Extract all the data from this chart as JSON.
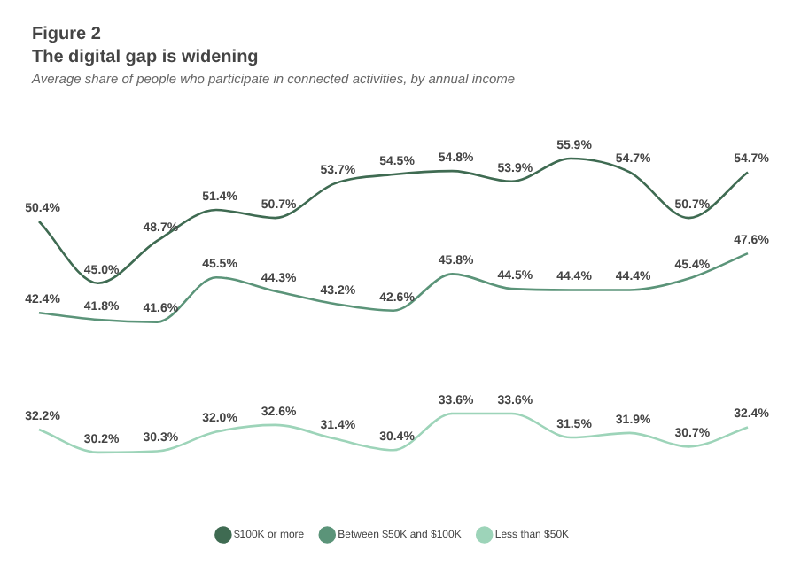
{
  "chart_data": {
    "type": "line",
    "title": "The digital gap is widening",
    "subtitle": "Average share of people who participate in connected activities, by annual income",
    "annotations": [
      "Figure 2"
    ],
    "categories": [
      null,
      null,
      null,
      null,
      null,
      null,
      null,
      null,
      null,
      null,
      null,
      null,
      null
    ],
    "series": [
      {
        "name": "$100K or more",
        "color": "#3f6b52",
        "values": [
          50.4,
          45.0,
          48.7,
          51.4,
          50.7,
          53.7,
          54.5,
          54.8,
          53.9,
          55.9,
          54.7,
          50.7,
          54.7
        ],
        "value_labels": [
          "50.4%",
          "45.0%",
          "48.7%",
          "51.4%",
          "50.7%",
          "53.7%",
          "54.5%",
          "54.8%",
          "53.9%",
          "55.9%",
          "54.7%",
          "50.7%",
          "54.7%"
        ]
      },
      {
        "name": "Between $50K and $100K",
        "color": "#5b9479",
        "values": [
          42.4,
          41.8,
          41.6,
          45.5,
          44.3,
          43.2,
          42.6,
          45.8,
          44.5,
          44.4,
          44.4,
          45.4,
          47.6
        ],
        "value_labels": [
          "42.4%",
          "41.8%",
          "41.6%",
          "45.5%",
          "44.3%",
          "43.2%",
          "42.6%",
          "45.8%",
          "44.5%",
          "44.4%",
          "44.4%",
          "45.4%",
          "47.6%"
        ]
      },
      {
        "name": "Less than $50K",
        "color": "#9dd4b9",
        "values": [
          32.2,
          30.2,
          30.3,
          32.0,
          32.6,
          31.4,
          30.4,
          33.6,
          33.6,
          31.5,
          31.9,
          30.7,
          32.4
        ],
        "value_labels": [
          "32.2%",
          "30.2%",
          "30.3%",
          "32.0%",
          "32.6%",
          "31.4%",
          "30.4%",
          "33.6%",
          "33.6%",
          "31.5%",
          "31.9%",
          "30.7%",
          "32.4%"
        ]
      }
    ],
    "legend": "bottom",
    "marker": "none",
    "line_style": "solid",
    "grid": false
  }
}
